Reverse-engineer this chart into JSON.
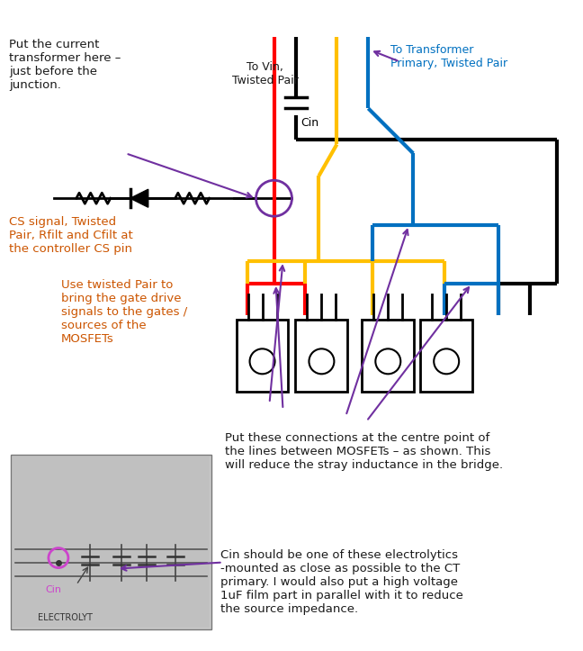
{
  "bg_color": "#ffffff",
  "text_color_dark": "#1a1a1a",
  "text_color_orange": "#cc5500",
  "text_color_blue": "#0070c0",
  "text_color_purple": "#7030a0",
  "wire_red": "#ff0000",
  "wire_black": "#000000",
  "wire_yellow": "#ffc000",
  "wire_blue": "#0070c0",
  "arrow_purple": "#7030a0",
  "annotation1_title": "Put the current\ntransformer here –\njust before the\njunction.",
  "annotation2": "CS signal, Twisted\nPair, Rfilt and Cfilt at\nthe controller CS pin",
  "annotation3": "Use twisted Pair to\nbring the gate drive\nsignals to the gates /\nsources of the\nMOSFETs",
  "annotation4": "To Vin,\nTwisted Pair",
  "annotation5": "To Transformer\nPrimary, Twisted Pair",
  "annotation6": "Put these connections at the centre point of\nthe lines between MOSFETs – as shown. This\nwill reduce the stray inductance in the bridge.",
  "annotation7": "Cin should be one of these electrolytics\n-mounted as close as possible to the CT\nprimary. I would also put a high voltage\n1uF film part in parallel with it to reduce\nthe source impedance.",
  "cin_label": "Cin",
  "cin_label2": "Cin"
}
